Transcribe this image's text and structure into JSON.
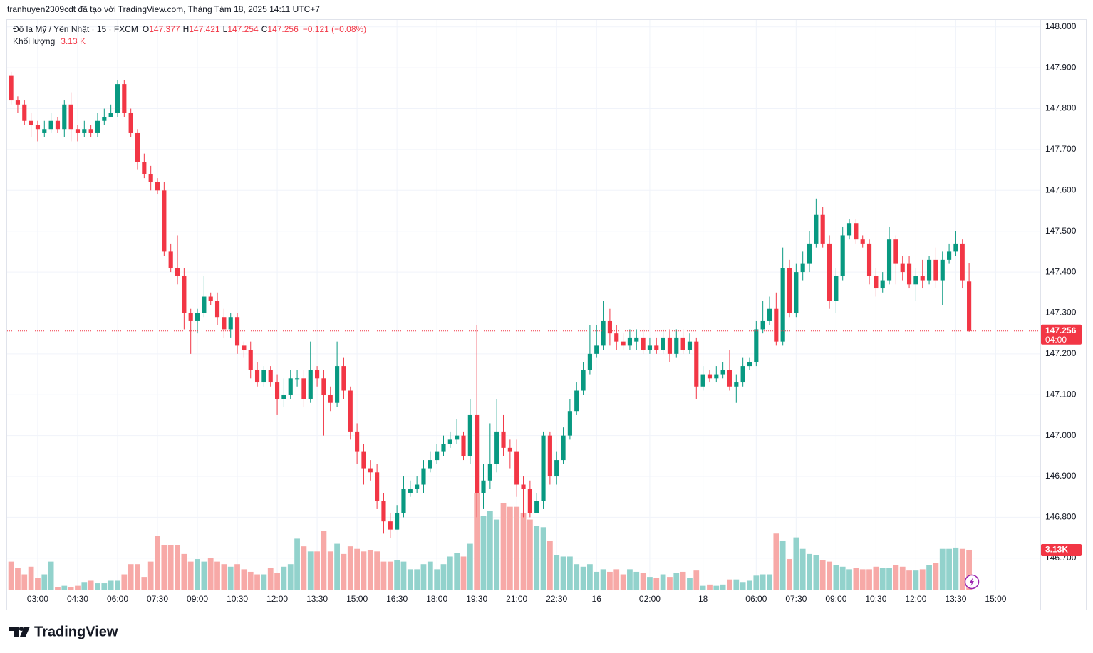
{
  "header": {
    "attribution": "tranhuyen2309cdt đã tạo với TradingView.com, Tháng Tám 18, 2025 14:11 UTC+7"
  },
  "chart_data": {
    "type": "candlestick",
    "symbol": "Đô la Mỹ / Yên Nhật · 15 · FXCM",
    "legend": {
      "o": "O",
      "h": "H",
      "l": "L",
      "c": "C",
      "change": "−0.121 (−0.08%)",
      "volume_title": "Khối lượng",
      "volume_label": "3.13 K"
    },
    "countdown": "04:00",
    "volume_tag": "3.13K",
    "grid": true,
    "colors": {
      "up": "#089981",
      "down": "#f23645",
      "volume_up": "#92d2cc",
      "volume_down": "#f7a9a7"
    },
    "xlim": [
      -0.6,
      154.7
    ],
    "xticks": [
      {
        "value": 4,
        "label": "03:00"
      },
      {
        "value": 10,
        "label": "04:30"
      },
      {
        "value": 16,
        "label": "06:00"
      },
      {
        "value": 22,
        "label": "07:30"
      },
      {
        "value": 28,
        "label": "09:00"
      },
      {
        "value": 34,
        "label": "10:30"
      },
      {
        "value": 40,
        "label": "12:00"
      },
      {
        "value": 46,
        "label": "13:30"
      },
      {
        "value": 52,
        "label": "15:00"
      },
      {
        "value": 58,
        "label": "16:30"
      },
      {
        "value": 64,
        "label": "18:00"
      },
      {
        "value": 70,
        "label": "19:30"
      },
      {
        "value": 76,
        "label": "21:00"
      },
      {
        "value": 82,
        "label": "22:30"
      },
      {
        "value": 88,
        "label": "16"
      },
      {
        "value": 96,
        "label": "02:00"
      },
      {
        "value": 104,
        "label": "18"
      },
      {
        "value": 112,
        "label": "06:00"
      },
      {
        "value": 118,
        "label": "07:30"
      },
      {
        "value": 124,
        "label": "09:00"
      },
      {
        "value": 130,
        "label": "10:30"
      },
      {
        "value": 136,
        "label": "12:00"
      },
      {
        "value": 142,
        "label": "13:30"
      },
      {
        "value": 148,
        "label": "15:00"
      }
    ],
    "ylim": [
      146.623,
      148.017
    ],
    "yticks": [
      {
        "value": 148.0,
        "label": "148.000"
      },
      {
        "value": 147.9,
        "label": "147.900"
      },
      {
        "value": 147.8,
        "label": "147.800"
      },
      {
        "value": 147.7,
        "label": "147.700"
      },
      {
        "value": 147.6,
        "label": "147.600"
      },
      {
        "value": 147.5,
        "label": "147.500"
      },
      {
        "value": 147.4,
        "label": "147.400"
      },
      {
        "value": 147.3,
        "label": "147.300"
      },
      {
        "value": 147.2,
        "label": "147.200"
      },
      {
        "value": 147.1,
        "label": "147.100"
      },
      {
        "value": 147.0,
        "label": "147.000"
      },
      {
        "value": 146.9,
        "label": "146.900"
      },
      {
        "value": 146.8,
        "label": "146.800"
      },
      {
        "value": 146.7,
        "label": "146.700"
      }
    ],
    "volume_ylim": [
      0,
      44.7
    ],
    "open": [
      147.88,
      147.82,
      147.81,
      147.77,
      147.76,
      147.74,
      147.75,
      147.77,
      147.75,
      147.81,
      147.75,
      147.74,
      147.75,
      147.74,
      147.77,
      147.78,
      147.79,
      147.86,
      147.79,
      147.74,
      147.67,
      147.64,
      147.62,
      147.6,
      147.45,
      147.41,
      147.39,
      147.3,
      147.28,
      147.3,
      147.34,
      147.33,
      147.29,
      147.26,
      147.29,
      147.22,
      147.21,
      147.16,
      147.13,
      147.16,
      147.13,
      147.09,
      147.1,
      147.14,
      147.14,
      147.09,
      147.16,
      147.14,
      147.1,
      147.08,
      147.17,
      147.11,
      147.01,
      146.96,
      146.92,
      146.91,
      146.84,
      146.79,
      146.77,
      146.81,
      146.86,
      146.87,
      146.88,
      146.92,
      146.94,
      146.96,
      146.98,
      146.99,
      147.0,
      146.95,
      147.05,
      146.86,
      146.89,
      146.93,
      147.01,
      146.97,
      146.96,
      146.88,
      146.87,
      146.81,
      146.84,
      147.0,
      146.9,
      146.94,
      147.0,
      147.06,
      147.11,
      147.16,
      147.2,
      147.22,
      147.28,
      147.25,
      147.23,
      147.22,
      147.23,
      147.24,
      147.21,
      147.22,
      147.21,
      147.24,
      147.2,
      147.24,
      147.21,
      147.23,
      147.12,
      147.15,
      147.14,
      147.15,
      147.16,
      147.12,
      147.13,
      147.17,
      147.18,
      147.26,
      147.28,
      147.31,
      147.23,
      147.41,
      147.3,
      147.4,
      147.42,
      147.47,
      147.54,
      147.47,
      147.33,
      147.39,
      147.49,
      147.52,
      147.48,
      147.47,
      147.39,
      147.36,
      147.38,
      147.48,
      147.42,
      147.42,
      147.37,
      147.39,
      147.38,
      147.43,
      147.38,
      147.43,
      147.45,
      147.47,
      147.377
    ],
    "high": [
      147.89,
      147.83,
      147.82,
      147.79,
      147.77,
      147.77,
      147.79,
      147.78,
      147.82,
      147.84,
      147.76,
      147.77,
      147.76,
      147.79,
      147.8,
      147.81,
      147.87,
      147.87,
      147.8,
      147.75,
      147.69,
      147.66,
      147.63,
      147.62,
      147.47,
      147.49,
      147.41,
      147.31,
      147.31,
      147.39,
      147.35,
      147.35,
      147.31,
      147.3,
      147.3,
      147.23,
      147.23,
      147.18,
      147.17,
      147.17,
      147.15,
      147.14,
      147.16,
      147.16,
      147.16,
      147.23,
      147.17,
      147.16,
      147.12,
      147.23,
      147.19,
      147.12,
      147.03,
      146.98,
      146.94,
      146.93,
      146.86,
      146.81,
      146.83,
      146.9,
      146.89,
      146.9,
      146.94,
      146.96,
      146.98,
      147.0,
      147.01,
      147.04,
      147.01,
      147.09,
      147.27,
      146.93,
      147.03,
      147.09,
      147.05,
      146.99,
      146.99,
      146.9,
      146.89,
      146.86,
      147.01,
      147.01,
      146.96,
      147.02,
      147.09,
      147.13,
      147.18,
      147.27,
      147.27,
      147.33,
      147.31,
      147.27,
      147.25,
      147.26,
      147.26,
      147.26,
      147.24,
      147.24,
      147.26,
      147.26,
      147.26,
      147.26,
      147.25,
      147.24,
      147.17,
      147.16,
      147.17,
      147.18,
      147.21,
      147.15,
      147.19,
      147.19,
      147.28,
      147.33,
      147.34,
      147.35,
      147.46,
      147.43,
      147.42,
      147.45,
      147.5,
      147.58,
      147.56,
      147.49,
      147.41,
      147.51,
      147.53,
      147.53,
      147.49,
      147.48,
      147.41,
      147.4,
      147.51,
      147.49,
      147.44,
      147.44,
      147.41,
      147.43,
      147.44,
      147.46,
      147.45,
      147.47,
      147.5,
      147.48,
      147.421
    ],
    "low": [
      147.81,
      147.79,
      147.76,
      147.73,
      147.72,
      147.73,
      147.74,
      147.74,
      147.73,
      147.72,
      147.72,
      147.73,
      147.73,
      147.73,
      147.76,
      147.78,
      147.78,
      147.78,
      147.73,
      147.65,
      147.63,
      147.6,
      147.59,
      147.44,
      147.4,
      147.37,
      147.26,
      147.2,
      147.25,
      147.29,
      147.32,
      147.27,
      147.24,
      147.24,
      147.2,
      147.19,
      147.14,
      147.12,
      147.12,
      147.12,
      147.05,
      147.07,
      147.09,
      147.12,
      147.07,
      147.08,
      147.12,
      147.0,
      147.06,
      147.07,
      147.09,
      146.99,
      146.93,
      146.88,
      146.89,
      146.82,
      146.76,
      146.75,
      146.77,
      146.8,
      146.85,
      146.86,
      146.86,
      146.91,
      146.93,
      146.95,
      146.97,
      146.98,
      146.94,
      146.93,
      146.8,
      146.82,
      146.87,
      146.91,
      146.95,
      146.92,
      146.85,
      146.8,
      146.8,
      146.81,
      146.82,
      146.88,
      146.88,
      146.93,
      146.99,
      147.05,
      147.1,
      147.15,
      147.19,
      147.21,
      147.22,
      147.21,
      147.21,
      147.21,
      147.21,
      147.2,
      147.2,
      147.2,
      147.2,
      147.18,
      147.19,
      147.2,
      147.2,
      147.09,
      147.11,
      147.13,
      147.13,
      147.14,
      147.11,
      147.08,
      147.12,
      147.16,
      147.17,
      147.25,
      147.27,
      147.22,
      147.22,
      147.29,
      147.29,
      147.38,
      147.4,
      147.46,
      147.46,
      147.31,
      147.3,
      147.38,
      147.48,
      147.47,
      147.46,
      147.37,
      147.34,
      147.35,
      147.37,
      147.37,
      147.38,
      147.36,
      147.33,
      147.36,
      147.37,
      147.36,
      147.32,
      147.42,
      147.44,
      147.36,
      147.254
    ],
    "close": [
      147.82,
      147.81,
      147.77,
      147.76,
      147.75,
      147.75,
      147.77,
      147.75,
      147.81,
      147.75,
      147.74,
      147.75,
      147.74,
      147.77,
      147.78,
      147.79,
      147.86,
      147.79,
      147.74,
      147.67,
      147.64,
      147.62,
      147.6,
      147.45,
      147.41,
      147.39,
      147.3,
      147.28,
      147.3,
      147.34,
      147.33,
      147.29,
      147.26,
      147.29,
      147.22,
      147.21,
      147.16,
      147.13,
      147.16,
      147.13,
      147.09,
      147.1,
      147.14,
      147.14,
      147.09,
      147.16,
      147.14,
      147.1,
      147.08,
      147.17,
      147.11,
      147.01,
      146.96,
      146.92,
      146.91,
      146.84,
      146.79,
      146.77,
      146.81,
      146.87,
      146.87,
      146.88,
      146.92,
      146.94,
      146.96,
      146.98,
      146.99,
      147.0,
      146.95,
      147.05,
      146.86,
      146.89,
      146.93,
      147.01,
      146.97,
      146.96,
      146.88,
      146.87,
      146.81,
      146.84,
      147.0,
      146.9,
      146.94,
      147.0,
      147.06,
      147.11,
      147.16,
      147.2,
      147.22,
      147.28,
      147.25,
      147.23,
      147.22,
      147.24,
      147.24,
      147.21,
      147.22,
      147.21,
      147.24,
      147.2,
      147.24,
      147.21,
      147.23,
      147.12,
      147.15,
      147.14,
      147.15,
      147.16,
      147.12,
      147.13,
      147.17,
      147.18,
      147.26,
      147.28,
      147.31,
      147.23,
      147.41,
      147.3,
      147.4,
      147.42,
      147.47,
      147.54,
      147.47,
      147.33,
      147.39,
      147.49,
      147.52,
      147.48,
      147.47,
      147.39,
      147.36,
      147.38,
      147.48,
      147.42,
      147.4,
      147.37,
      147.39,
      147.38,
      147.43,
      147.38,
      147.43,
      147.45,
      147.47,
      147.38,
      147.256
    ],
    "volume": [
      2.2,
      1.7,
      1.2,
      1.8,
      0.9,
      1.2,
      2.2,
      0.2,
      0.3,
      0.2,
      0.3,
      0.6,
      0.7,
      0.5,
      0.5,
      0.7,
      0.7,
      1.2,
      2.0,
      2.0,
      1.0,
      2.2,
      4.2,
      3.5,
      3.5,
      3.5,
      2.8,
      2.2,
      2.4,
      2.2,
      2.5,
      2.2,
      2.0,
      1.8,
      2.0,
      1.6,
      1.4,
      1.2,
      1.2,
      1.7,
      1.3,
      1.8,
      2.0,
      4.0,
      3.4,
      3.0,
      3.0,
      4.6,
      3.0,
      3.6,
      2.8,
      3.4,
      3.2,
      3.0,
      3.1,
      3.0,
      2.2,
      2.2,
      2.3,
      2.2,
      1.6,
      1.6,
      2.0,
      2.2,
      1.6,
      2.0,
      2.6,
      2.9,
      2.6,
      3.6,
      7.6,
      5.8,
      6.2,
      5.5,
      6.8,
      6.5,
      6.5,
      6.0,
      5.5,
      5.0,
      4.9,
      3.8,
      2.7,
      2.6,
      2.6,
      2.0,
      1.8,
      2.0,
      1.4,
      1.6,
      1.4,
      1.6,
      1.2,
      1.6,
      1.4,
      1.3,
      1.0,
      0.9,
      1.2,
      1.0,
      1.3,
      1.4,
      0.9,
      1.5,
      0.3,
      0.4,
      0.3,
      0.4,
      0.8,
      0.8,
      0.6,
      0.7,
      1.1,
      1.2,
      1.2,
      4.4,
      3.8,
      2.4,
      4.1,
      3.2,
      2.8,
      2.7,
      2.3,
      2.2,
      1.9,
      1.8,
      1.6,
      1.7,
      1.6,
      1.6,
      1.8,
      1.7,
      1.7,
      1.9,
      1.8,
      1.5,
      1.5,
      1.6,
      1.9,
      2.1,
      3.2,
      3.2,
      3.3,
      3.2,
      3.13
    ]
  },
  "footer": {
    "logo": "TradingView"
  }
}
